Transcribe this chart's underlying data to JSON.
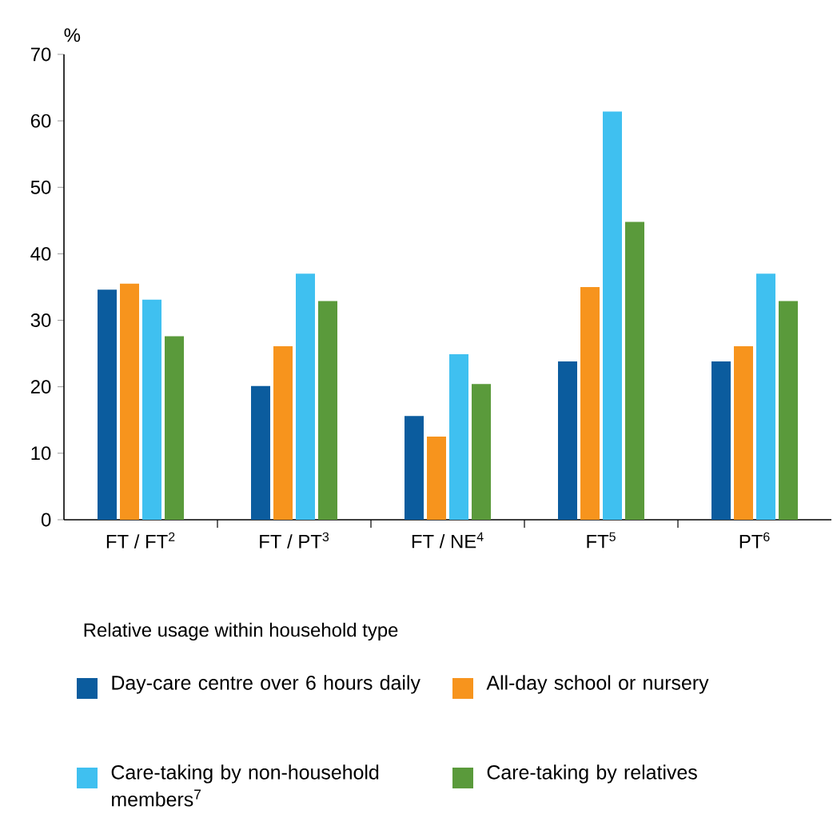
{
  "chart_data": {
    "type": "bar",
    "ylabel": "%",
    "legend_title": "Relative usage within household type",
    "legend": "bottom",
    "categories": [
      "FT / FT$^{2}$",
      "FT / PT$^{3}$",
      "FT / NE$^{4}$",
      "FT$^{5}$",
      "PT$^{6}$"
    ],
    "ylim": [
      0,
      70
    ],
    "yticks": [
      0,
      10,
      20,
      30,
      40,
      50,
      60,
      70
    ],
    "grid": false,
    "series": [
      {
        "name": "Day-care centre over 6 hours daily",
        "color": "#0b5c9e",
        "values": [
          34.6,
          20.1,
          15.6,
          23.8,
          23.8
        ]
      },
      {
        "name": "All-day school or nursery",
        "color": "#f7941d",
        "values": [
          35.5,
          26.1,
          12.5,
          35,
          26.1
        ]
      },
      {
        "name": "Care-taking by non-household members$^{7}$",
        "color": "#3fc0f0",
        "values": [
          33.1,
          37,
          24.9,
          61.4,
          37
        ]
      },
      {
        "name": "Care-taking by relatives",
        "color": "#5a9a3b",
        "values": [
          27.6,
          32.9,
          20.4,
          44.8,
          32.9
        ]
      }
    ]
  }
}
